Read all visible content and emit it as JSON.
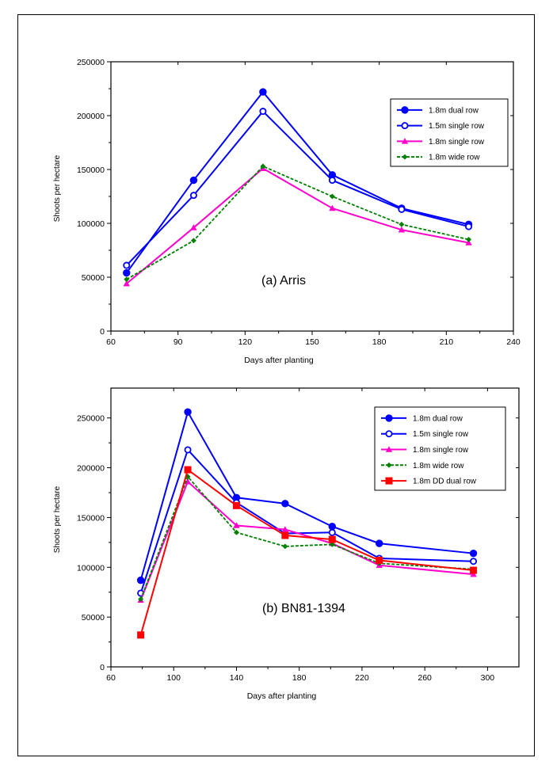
{
  "chart_data": [
    {
      "type": "line",
      "annotation": "(a) Arris",
      "xlabel": "Days after planting",
      "ylabel": "Shoots per hectare",
      "xlim": [
        60,
        240
      ],
      "ylim": [
        0,
        250000
      ],
      "xticks": [
        60,
        90,
        120,
        150,
        180,
        210,
        240
      ],
      "yticks": [
        0,
        50000,
        100000,
        150000,
        200000,
        250000
      ],
      "x": [
        67,
        97,
        128,
        159,
        190,
        220
      ],
      "legend_position": "top-right",
      "series": [
        {
          "name": "1.8m dual row",
          "color": "#0000ff",
          "dash": "solid",
          "marker": "filled-circle",
          "values": [
            54000,
            140000,
            222000,
            145000,
            114000,
            99000
          ]
        },
        {
          "name": "1.5m single row",
          "color": "#0000ff",
          "dash": "solid",
          "marker": "open-circle",
          "values": [
            61000,
            126000,
            204000,
            140000,
            113000,
            97000
          ]
        },
        {
          "name": "1.8m single row",
          "color": "#ff00cc",
          "dash": "solid",
          "marker": "triangle",
          "values": [
            44000,
            96000,
            151000,
            114000,
            94000,
            82000
          ]
        },
        {
          "name": "1.8m wide row",
          "color": "#008000",
          "dash": "dashed",
          "marker": "diamond",
          "values": [
            48000,
            84000,
            153000,
            125000,
            99000,
            85000
          ]
        }
      ]
    },
    {
      "type": "line",
      "annotation": "(b) BN81-1394",
      "xlabel": "Days after planting",
      "ylabel": "Shoots per hectare",
      "xlim": [
        60,
        320
      ],
      "ylim": [
        0,
        280000
      ],
      "xticks": [
        60,
        100,
        140,
        180,
        220,
        260,
        300
      ],
      "yticks": [
        0,
        50000,
        100000,
        150000,
        200000,
        250000
      ],
      "x": [
        79,
        109,
        140,
        171,
        201,
        231,
        291
      ],
      "legend_position": "top-right",
      "series": [
        {
          "name": "1.8m dual row",
          "color": "#0000ff",
          "dash": "solid",
          "marker": "filled-circle",
          "values": [
            87000,
            256000,
            170000,
            164000,
            141000,
            124000,
            114000
          ]
        },
        {
          "name": "1.5m single row",
          "color": "#0000ff",
          "dash": "solid",
          "marker": "open-circle",
          "values": [
            74000,
            218000,
            165000,
            134000,
            135000,
            109000,
            106000
          ]
        },
        {
          "name": "1.8m single row",
          "color": "#ff00cc",
          "dash": "solid",
          "marker": "triangle",
          "values": [
            67000,
            186000,
            142000,
            138000,
            124000,
            102000,
            93000
          ]
        },
        {
          "name": "1.8m wide row",
          "color": "#008000",
          "dash": "dashed",
          "marker": "diamond",
          "values": [
            68000,
            191000,
            135000,
            121000,
            123000,
            104000,
            98000
          ]
        },
        {
          "name": "1.8m DD dual row",
          "color": "#ff0000",
          "dash": "solid",
          "marker": "filled-square",
          "values": [
            32000,
            198000,
            162000,
            132000,
            128000,
            107000,
            97000
          ]
        }
      ]
    }
  ]
}
